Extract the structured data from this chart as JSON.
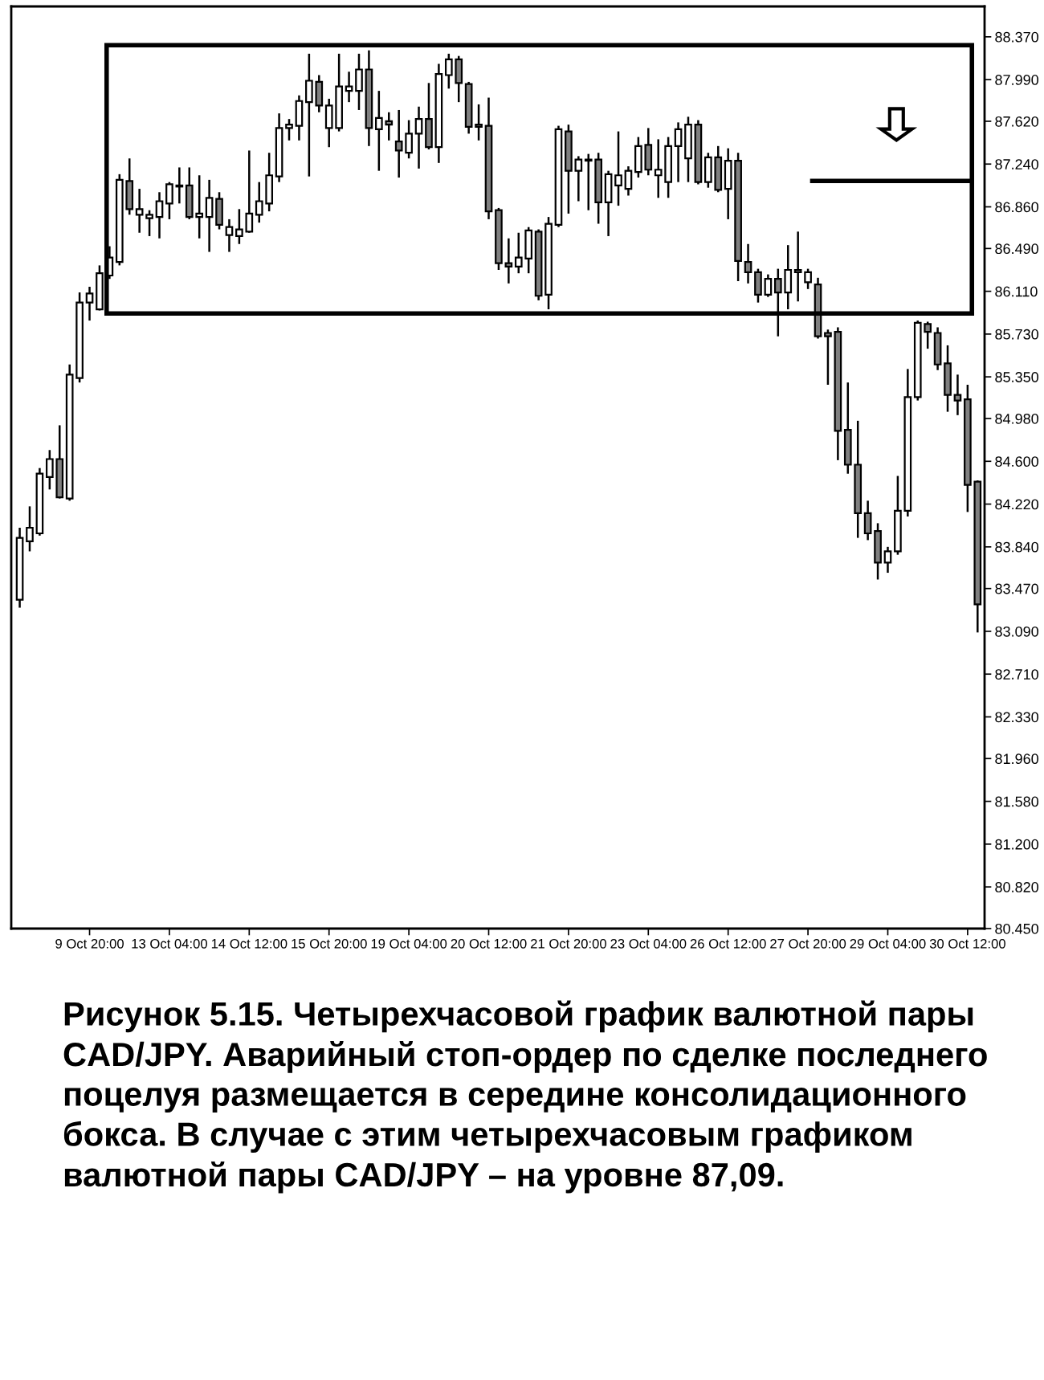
{
  "chart_data": {
    "type": "candlestick",
    "categories": [
      null,
      null,
      null,
      null,
      null,
      null,
      null,
      "9 Oct 20:00",
      null,
      null,
      null,
      null,
      null,
      null,
      null,
      "13 Oct 04:00",
      null,
      null,
      null,
      null,
      null,
      null,
      null,
      "14 Oct 12:00",
      null,
      null,
      null,
      null,
      null,
      null,
      null,
      "15 Oct 20:00",
      null,
      null,
      null,
      null,
      null,
      null,
      null,
      "19 Oct 04:00",
      null,
      null,
      null,
      null,
      null,
      null,
      null,
      "20 Oct 12:00",
      null,
      null,
      null,
      null,
      null,
      null,
      null,
      "21 Oct 20:00",
      null,
      null,
      null,
      null,
      null,
      null,
      null,
      "23 Oct 04:00",
      null,
      null,
      null,
      null,
      null,
      null,
      null,
      "26 Oct 12:00",
      null,
      null,
      null,
      null,
      null,
      null,
      null,
      "27 Oct 20:00",
      null,
      null,
      null,
      null,
      null,
      null,
      null,
      "29 Oct 04:00",
      null,
      null,
      null,
      null,
      null,
      null,
      null,
      "30 Oct 12:00",
      null
    ],
    "ohlc": [
      [
        83.37,
        84.01,
        83.3,
        83.92
      ],
      [
        83.89,
        84.2,
        83.8,
        84.01
      ],
      [
        83.96,
        84.54,
        83.94,
        84.49
      ],
      [
        84.46,
        84.7,
        84.35,
        84.62
      ],
      [
        84.62,
        84.92,
        84.27,
        84.28
      ],
      [
        84.27,
        85.46,
        84.25,
        85.37
      ],
      [
        85.34,
        86.1,
        85.3,
        86.01
      ],
      [
        86.01,
        86.15,
        85.85,
        86.09
      ],
      [
        85.95,
        86.34,
        85.94,
        86.27
      ],
      [
        86.25,
        86.51,
        86.22,
        86.41
      ],
      [
        86.37,
        87.15,
        86.34,
        87.1
      ],
      [
        87.09,
        87.29,
        86.79,
        86.84
      ],
      [
        86.79,
        87.02,
        86.63,
        86.84
      ],
      [
        86.76,
        86.83,
        86.6,
        86.79
      ],
      [
        86.77,
        86.99,
        86.58,
        86.91
      ],
      [
        86.89,
        87.08,
        86.75,
        87.06
      ],
      [
        87.04,
        87.21,
        86.89,
        87.05
      ],
      [
        87.05,
        87.21,
        86.75,
        86.77
      ],
      [
        86.77,
        87.14,
        86.58,
        86.8
      ],
      [
        86.77,
        87.1,
        86.46,
        86.94
      ],
      [
        86.93,
        86.99,
        86.66,
        86.7
      ],
      [
        86.61,
        86.75,
        86.46,
        86.68
      ],
      [
        86.6,
        86.84,
        86.53,
        86.66
      ],
      [
        86.64,
        87.36,
        86.63,
        86.8
      ],
      [
        86.79,
        87.08,
        86.72,
        86.91
      ],
      [
        86.89,
        87.34,
        86.82,
        87.14
      ],
      [
        87.13,
        87.69,
        87.08,
        87.56
      ],
      [
        87.56,
        87.64,
        87.45,
        87.59
      ],
      [
        87.58,
        87.85,
        87.45,
        87.8
      ],
      [
        87.79,
        88.22,
        87.13,
        87.98
      ],
      [
        87.97,
        88.03,
        87.7,
        87.76
      ],
      [
        87.56,
        87.82,
        87.39,
        87.76
      ],
      [
        87.56,
        88.22,
        87.53,
        87.93
      ],
      [
        87.89,
        88.06,
        87.79,
        87.93
      ],
      [
        87.89,
        88.22,
        87.72,
        88.08
      ],
      [
        88.08,
        88.25,
        87.4,
        87.56
      ],
      [
        87.55,
        87.89,
        87.18,
        87.65
      ],
      [
        87.62,
        87.7,
        87.45,
        87.59
      ],
      [
        87.44,
        87.72,
        87.12,
        87.36
      ],
      [
        87.34,
        87.63,
        87.29,
        87.51
      ],
      [
        87.51,
        87.75,
        87.2,
        87.64
      ],
      [
        87.64,
        87.96,
        87.37,
        87.39
      ],
      [
        87.39,
        88.13,
        87.25,
        88.04
      ],
      [
        88.03,
        88.22,
        87.91,
        88.17
      ],
      [
        88.17,
        88.2,
        87.79,
        87.96
      ],
      [
        87.95,
        87.97,
        87.51,
        87.57
      ],
      [
        87.59,
        87.77,
        87.45,
        87.57
      ],
      [
        87.58,
        87.83,
        86.75,
        86.82
      ],
      [
        86.83,
        86.85,
        86.3,
        86.36
      ],
      [
        86.36,
        86.58,
        86.18,
        86.33
      ],
      [
        86.33,
        86.63,
        86.27,
        86.41
      ],
      [
        86.4,
        86.68,
        86.27,
        86.65
      ],
      [
        86.64,
        86.66,
        86.03,
        86.07
      ],
      [
        86.08,
        86.77,
        85.95,
        86.71
      ],
      [
        86.7,
        87.58,
        86.68,
        87.55
      ],
      [
        87.53,
        87.59,
        86.8,
        87.18
      ],
      [
        87.18,
        87.31,
        86.91,
        87.28
      ],
      [
        87.28,
        87.33,
        86.83,
        87.27
      ],
      [
        87.28,
        87.34,
        86.71,
        86.9
      ],
      [
        86.9,
        87.18,
        86.6,
        87.15
      ],
      [
        87.05,
        87.53,
        86.87,
        87.14
      ],
      [
        87.02,
        87.22,
        86.96,
        87.18
      ],
      [
        87.17,
        87.48,
        87.12,
        87.4
      ],
      [
        87.41,
        87.56,
        87.14,
        87.19
      ],
      [
        87.14,
        87.46,
        86.94,
        87.19
      ],
      [
        87.08,
        87.48,
        86.94,
        87.4
      ],
      [
        87.4,
        87.61,
        87.08,
        87.55
      ],
      [
        87.29,
        87.66,
        87.08,
        87.59
      ],
      [
        87.59,
        87.63,
        87.06,
        87.08
      ],
      [
        87.08,
        87.34,
        87.03,
        87.3
      ],
      [
        87.3,
        87.4,
        86.99,
        87.01
      ],
      [
        87.02,
        87.38,
        86.75,
        87.27
      ],
      [
        87.27,
        87.34,
        86.2,
        86.38
      ],
      [
        86.37,
        86.53,
        86.18,
        86.28
      ],
      [
        86.28,
        86.31,
        86.01,
        86.08
      ],
      [
        86.08,
        86.26,
        86.06,
        86.22
      ],
      [
        86.22,
        86.31,
        85.71,
        86.1
      ],
      [
        86.1,
        86.52,
        85.95,
        86.3
      ],
      [
        86.3,
        86.64,
        86.02,
        86.28
      ],
      [
        86.19,
        86.31,
        86.13,
        86.28
      ],
      [
        86.17,
        86.23,
        85.69,
        85.71
      ],
      [
        85.74,
        85.77,
        85.28,
        85.71
      ],
      [
        85.75,
        85.79,
        84.61,
        84.87
      ],
      [
        84.88,
        85.3,
        84.49,
        84.57
      ],
      [
        84.57,
        84.96,
        83.92,
        84.14
      ],
      [
        84.14,
        84.25,
        83.9,
        83.96
      ],
      [
        83.98,
        84.05,
        83.55,
        83.7
      ],
      [
        83.7,
        83.84,
        83.61,
        83.8
      ],
      [
        83.8,
        84.47,
        83.77,
        84.16
      ],
      [
        84.16,
        85.42,
        84.11,
        85.17
      ],
      [
        85.17,
        85.85,
        85.14,
        85.83
      ],
      [
        85.82,
        85.84,
        85.6,
        85.75
      ],
      [
        85.74,
        85.79,
        85.41,
        85.46
      ],
      [
        85.47,
        85.63,
        85.04,
        85.19
      ],
      [
        85.19,
        85.37,
        85.01,
        85.14
      ],
      [
        85.15,
        85.28,
        84.15,
        84.39
      ],
      [
        84.42,
        84.43,
        83.08,
        83.33
      ]
    ],
    "colors": [
      "#ffffff",
      "#ffffff",
      "#ffffff",
      "#ffffff",
      "#808080",
      "#ffffff",
      "#ffffff",
      "#ffffff",
      "#ffffff",
      "#ffffff",
      "#ffffff",
      "#808080",
      "#ffffff",
      "#ffffff",
      "#ffffff",
      "#ffffff",
      "#ffffff",
      "#808080",
      "#ffffff",
      "#ffffff",
      "#808080",
      "#ffffff",
      "#ffffff",
      "#ffffff",
      "#ffffff",
      "#ffffff",
      "#ffffff",
      "#ffffff",
      "#ffffff",
      "#ffffff",
      "#808080",
      "#ffffff",
      "#ffffff",
      "#ffffff",
      "#ffffff",
      "#808080",
      "#ffffff",
      "#808080",
      "#808080",
      "#ffffff",
      "#ffffff",
      "#808080",
      "#ffffff",
      "#ffffff",
      "#808080",
      "#808080",
      "#808080",
      "#808080",
      "#808080",
      "#808080",
      "#ffffff",
      "#ffffff",
      "#808080",
      "#ffffff",
      "#ffffff",
      "#808080",
      "#ffffff",
      "#808080",
      "#808080",
      "#ffffff",
      "#ffffff",
      "#ffffff",
      "#ffffff",
      "#808080",
      "#ffffff",
      "#ffffff",
      "#ffffff",
      "#ffffff",
      "#808080",
      "#ffffff",
      "#808080",
      "#ffffff",
      "#808080",
      "#808080",
      "#808080",
      "#ffffff",
      "#808080",
      "#ffffff",
      "#808080",
      "#ffffff",
      "#808080",
      "#808080",
      "#808080",
      "#808080",
      "#808080",
      "#808080",
      "#808080",
      "#ffffff",
      "#ffffff",
      "#ffffff",
      "#ffffff",
      "#808080",
      "#808080",
      "#808080",
      "#808080",
      "#808080",
      "#808080"
    ],
    "ylim": [
      80.45,
      88.64
    ],
    "yticks": [
      {
        "value": 88.37,
        "label": "88.370"
      },
      {
        "value": 87.99,
        "label": "87.990"
      },
      {
        "value": 87.62,
        "label": "87.620"
      },
      {
        "value": 87.24,
        "label": "87.240"
      },
      {
        "value": 86.86,
        "label": "86.860"
      },
      {
        "value": 86.49,
        "label": "86.490"
      },
      {
        "value": 86.11,
        "label": "86.110"
      },
      {
        "value": 85.73,
        "label": "85.730"
      },
      {
        "value": 85.35,
        "label": "85.350"
      },
      {
        "value": 84.98,
        "label": "84.980"
      },
      {
        "value": 84.6,
        "label": "84.600"
      },
      {
        "value": 84.22,
        "label": "84.220"
      },
      {
        "value": 83.84,
        "label": "83.840"
      },
      {
        "value": 83.47,
        "label": "83.470"
      },
      {
        "value": 83.09,
        "label": "83.090"
      },
      {
        "value": 82.71,
        "label": "82.710"
      },
      {
        "value": 82.33,
        "label": "82.330"
      },
      {
        "value": 81.96,
        "label": "81.960"
      },
      {
        "value": 81.58,
        "label": "81.580"
      },
      {
        "value": 81.2,
        "label": "81.200"
      },
      {
        "value": 80.82,
        "label": "80.820"
      },
      {
        "value": 80.45,
        "label": "80.450"
      }
    ],
    "ref_lines": [
      {
        "axis": "y",
        "value": 87.09,
        "color": "#000000"
      }
    ],
    "grid": false,
    "annotations": [
      "Рисунок 5.15. Четырехчасовой график валютной пары CAD/JPY. Аварийный стоп-ордер по сделке последнего поцелуя размещается в середине консолидационного бокса. В случае с этим четырехчасовым графиком валютной пары CAD/JPY – на уровне 87,09."
    ]
  }
}
